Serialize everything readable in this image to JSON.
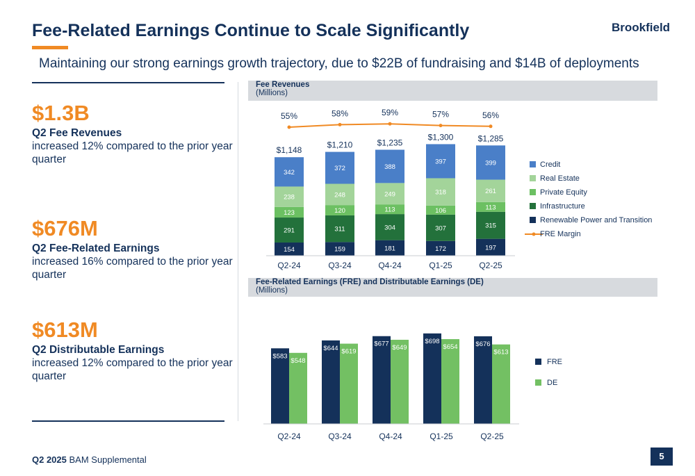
{
  "header": {
    "title": "Fee-Related Earnings Continue to Scale Significantly",
    "logo_text": "Brookfield",
    "subtitle": "Maintaining our strong earnings growth trajectory, due to $22B of fundraising and $14B of deployments"
  },
  "kpis": [
    {
      "value": "$1.3B",
      "label": "Q2 Fee Revenues",
      "description": "increased 12% compared to the prior year quarter"
    },
    {
      "value": "$676M",
      "label": "Q2 Fee-Related Earnings",
      "description": "increased 16% compared to the prior year quarter"
    },
    {
      "value": "$613M",
      "label": "Q2 Distributable Earnings",
      "description": "increased 12% compared to the prior year quarter"
    }
  ],
  "panels": {
    "fee_revenues": {
      "title": "Fee Revenues",
      "unit": "(Millions)"
    },
    "earnings": {
      "title": "Fee-Related Earnings (FRE) and Distributable Earnings (DE)",
      "unit": "(Millions)"
    }
  },
  "footer": {
    "bold": "Q2 2025",
    "text": " BAM Supplemental",
    "page_number": "5"
  },
  "colors": {
    "navy": "#14315a",
    "orange": "#f08a24",
    "credit": "#4a7fc8",
    "real_estate": "#a3d49a",
    "private_equity": "#6cc062",
    "infrastructure": "#23713b",
    "renewable": "#14315a",
    "de": "#73c063"
  },
  "chart_data": [
    {
      "type": "bar",
      "stacked": true,
      "title": "Fee Revenues",
      "unit": "(Millions)",
      "categories": [
        "Q2-24",
        "Q3-24",
        "Q4-24",
        "Q1-25",
        "Q2-25"
      ],
      "series": [
        {
          "name": "Renewable Power and Transition",
          "values": [
            154,
            159,
            181,
            172,
            197
          ],
          "color": "#14315a"
        },
        {
          "name": "Infrastructure",
          "values": [
            291,
            311,
            304,
            307,
            315
          ],
          "color": "#23713b"
        },
        {
          "name": "Private Equity",
          "values": [
            123,
            120,
            113,
            106,
            113
          ],
          "color": "#6cc062"
        },
        {
          "name": "Real Estate",
          "values": [
            238,
            248,
            249,
            318,
            261
          ],
          "color": "#a3d49a"
        },
        {
          "name": "Credit",
          "values": [
            342,
            372,
            388,
            397,
            399
          ],
          "color": "#4a7fc8"
        }
      ],
      "totals": [
        "$1,148",
        "$1,210",
        "$1,235",
        "$1,300",
        "$1,285"
      ],
      "line_series": {
        "name": "FRE Margin",
        "values": [
          55,
          58,
          59,
          57,
          56
        ],
        "labels": [
          "55%",
          "58%",
          "59%",
          "57%",
          "56%"
        ],
        "color": "#f08a24"
      },
      "legend": [
        "Credit",
        "Real Estate",
        "Private Equity",
        "Infrastructure",
        "Renewable Power and Transition",
        "FRE Margin"
      ],
      "legend_position": "right"
    },
    {
      "type": "bar",
      "stacked": false,
      "title": "Fee-Related Earnings (FRE) and Distributable Earnings (DE)",
      "unit": "(Millions)",
      "categories": [
        "Q2-24",
        "Q3-24",
        "Q4-24",
        "Q1-25",
        "Q2-25"
      ],
      "series": [
        {
          "name": "FRE",
          "values": [
            583,
            644,
            677,
            698,
            676
          ],
          "labels": [
            "$583",
            "$644",
            "$677",
            "$698",
            "$676"
          ],
          "color": "#14315a"
        },
        {
          "name": "DE",
          "values": [
            548,
            619,
            649,
            654,
            613
          ],
          "labels": [
            "$548",
            "$619",
            "$649",
            "$654",
            "$613"
          ],
          "color": "#73c063"
        }
      ],
      "legend": [
        "FRE",
        "DE"
      ],
      "legend_position": "right"
    }
  ]
}
